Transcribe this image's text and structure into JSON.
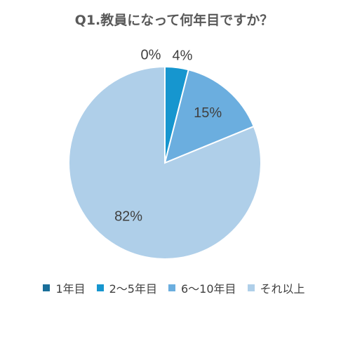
{
  "chart_data": {
    "type": "pie",
    "title": "Q1.教員になって何年目ですか？",
    "categories": [
      "1年目",
      "2〜5年目",
      "6〜10年目",
      "それ以上"
    ],
    "values": [
      0,
      4,
      15,
      82
    ],
    "labels": [
      "0%",
      "4%",
      "15%",
      "82%"
    ],
    "colors": [
      "#1a6f9a",
      "#1696cf",
      "#6baedf",
      "#afcfe9"
    ],
    "legend_position": "bottom"
  }
}
